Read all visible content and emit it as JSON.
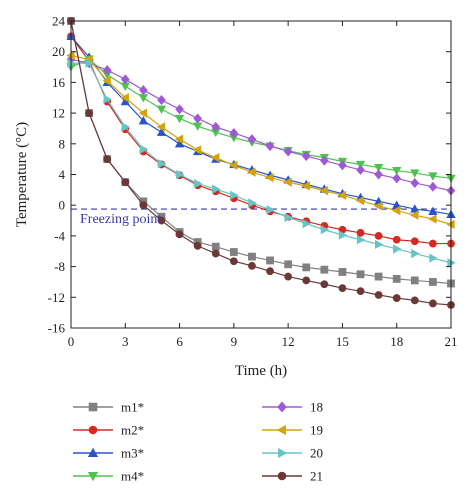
{
  "chart_data": {
    "type": "line",
    "xlabel": "Time (h)",
    "ylabel": "Temperature (°C)",
    "xlim": [
      0,
      21
    ],
    "ylim": [
      -16,
      24
    ],
    "xticks": [
      "0",
      "3",
      "6",
      "9",
      "12",
      "15",
      "18",
      "21"
    ],
    "yticks": [
      "-16",
      "-12",
      "-8",
      "-4",
      "0",
      "4",
      "8",
      "12",
      "16",
      "20",
      "24"
    ],
    "x": [
      0,
      1,
      2,
      3,
      4,
      5,
      6,
      7,
      8,
      9,
      10,
      11,
      12,
      13,
      14,
      15,
      16,
      17,
      18,
      19,
      20,
      21
    ],
    "series": [
      {
        "name": "m1*",
        "marker": "square",
        "color": "#808080",
        "values": [
          24.0,
          12.0,
          6.0,
          3.0,
          0.5,
          -1.5,
          -3.5,
          -4.8,
          -5.4,
          -6.1,
          -6.7,
          -7.2,
          -7.7,
          -8.1,
          -8.4,
          -8.7,
          -9.0,
          -9.3,
          -9.6,
          -9.8,
          -10.0,
          -10.2
        ]
      },
      {
        "name": "m2*",
        "marker": "circle",
        "color": "#d42a20",
        "values": [
          22.0,
          18.8,
          13.5,
          9.9,
          7.0,
          5.3,
          3.9,
          2.6,
          1.8,
          0.9,
          0.0,
          -0.8,
          -1.5,
          -2.1,
          -2.7,
          -3.2,
          -3.6,
          -4.0,
          -4.5,
          -4.7,
          -5.0,
          -5.0
        ]
      },
      {
        "name": "m3*",
        "marker": "triangle-up",
        "color": "#2855c8",
        "values": [
          22.0,
          19.3,
          16.0,
          13.5,
          11.0,
          9.5,
          8.0,
          7.0,
          6.0,
          5.3,
          4.6,
          3.9,
          3.3,
          2.7,
          2.1,
          1.5,
          1.0,
          0.5,
          0.0,
          -0.5,
          -0.8,
          -1.2
        ]
      },
      {
        "name": "m4*",
        "marker": "triangle-down",
        "color": "#4ec24e",
        "values": [
          18.0,
          19.0,
          17.0,
          15.5,
          14.0,
          12.5,
          11.3,
          10.3,
          9.5,
          8.8,
          8.2,
          7.7,
          7.1,
          6.6,
          6.2,
          5.7,
          5.3,
          4.9,
          4.5,
          4.2,
          3.8,
          3.5
        ]
      },
      {
        "name": "18",
        "marker": "diamond",
        "color": "#9e5ad4",
        "values": [
          19.0,
          18.5,
          17.6,
          16.4,
          15.0,
          13.7,
          12.5,
          11.3,
          10.2,
          9.4,
          8.6,
          7.7,
          7.0,
          6.4,
          5.8,
          5.2,
          4.6,
          4.0,
          3.5,
          2.9,
          2.4,
          1.9
        ]
      },
      {
        "name": "19",
        "marker": "triangle-left",
        "color": "#d4a30a",
        "values": [
          19.5,
          19.0,
          16.2,
          14.0,
          12.0,
          10.2,
          8.6,
          7.2,
          6.2,
          5.2,
          4.3,
          3.6,
          3.0,
          2.5,
          1.9,
          1.3,
          0.6,
          -0.1,
          -0.7,
          -1.3,
          -1.8,
          -2.5
        ]
      },
      {
        "name": "20",
        "marker": "triangle-right",
        "color": "#68c5c5",
        "values": [
          18.5,
          18.5,
          13.8,
          10.2,
          7.3,
          5.4,
          4.0,
          2.8,
          2.1,
          1.3,
          0.3,
          -0.6,
          -1.6,
          -2.4,
          -3.2,
          -3.9,
          -4.5,
          -5.1,
          -5.7,
          -6.3,
          -6.9,
          -7.5
        ]
      },
      {
        "name": "21",
        "marker": "circle",
        "color": "#6b3838",
        "values": [
          24.0,
          12.0,
          6.0,
          3.0,
          0.0,
          -2.0,
          -3.8,
          -5.3,
          -6.3,
          -7.3,
          -7.9,
          -8.6,
          -9.3,
          -9.8,
          -10.3,
          -10.8,
          -11.2,
          -11.7,
          -12.1,
          -12.4,
          -12.8,
          -13.0
        ]
      }
    ],
    "freezing_line": {
      "y": -0.5,
      "label": "Freezing point",
      "color": "#3a3aa8",
      "style": "dashed"
    },
    "legend": {
      "placement": "bottom",
      "columns": 2
    },
    "grid": false
  }
}
